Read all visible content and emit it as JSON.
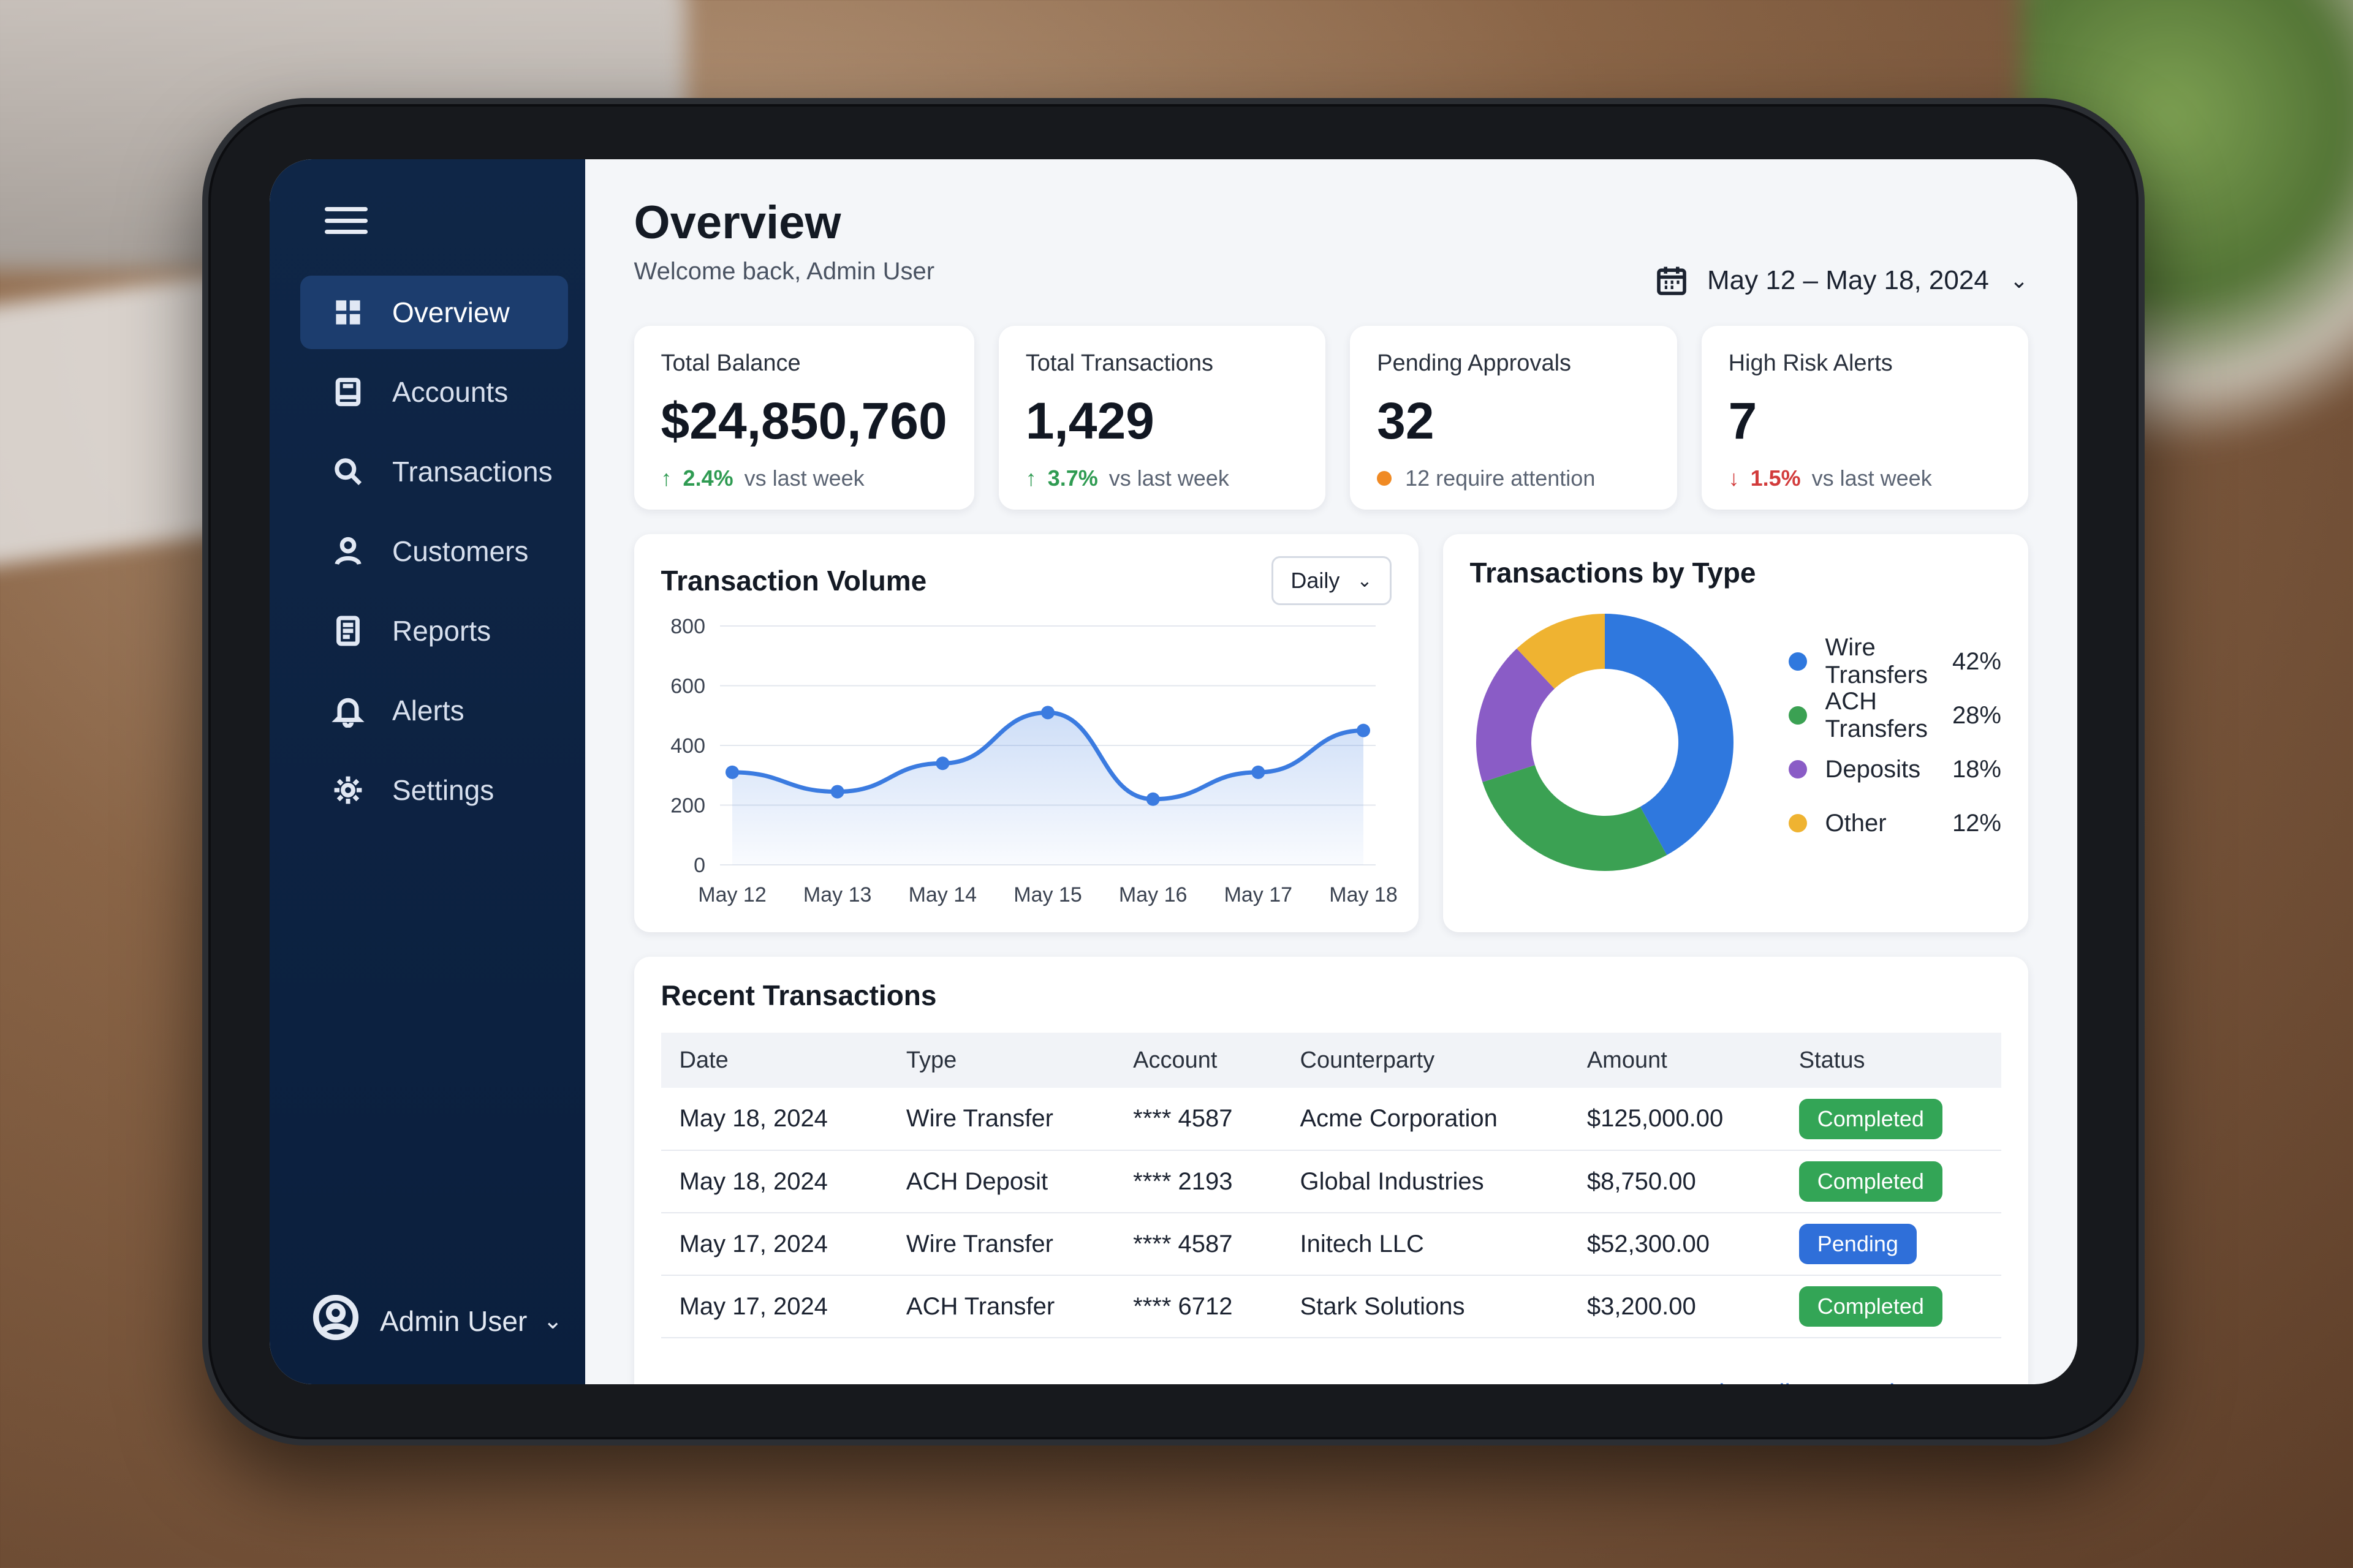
{
  "sidebar": {
    "items": [
      {
        "label": "Overview",
        "icon": "grid-icon",
        "active": true
      },
      {
        "label": "Accounts",
        "icon": "ledger-icon"
      },
      {
        "label": "Transactions",
        "icon": "search-icon"
      },
      {
        "label": "Customers",
        "icon": "user-icon"
      },
      {
        "label": "Reports",
        "icon": "document-icon"
      },
      {
        "label": "Alerts",
        "icon": "bell-icon"
      },
      {
        "label": "Settings",
        "icon": "gear-icon"
      }
    ],
    "user": "Admin User"
  },
  "header": {
    "title": "Overview",
    "subtitle": "Welcome back, Admin User",
    "date_range": "May 12 – May 18, 2024"
  },
  "kpis": [
    {
      "label": "Total Balance",
      "value": "$24,850,760",
      "delta": "2.4%",
      "delta_text": "vs last week",
      "direction": "up"
    },
    {
      "label": "Total Transactions",
      "value": "1,429",
      "delta": "3.7%",
      "delta_text": "vs last week",
      "direction": "up"
    },
    {
      "label": "Pending Approvals",
      "value": "32",
      "delta_text": "12 require attention",
      "direction": "attention"
    },
    {
      "label": "High Risk Alerts",
      "value": "7",
      "delta": "1.5%",
      "delta_text": "vs last week",
      "direction": "down"
    }
  ],
  "volume": {
    "title": "Transaction Volume",
    "period": "Daily"
  },
  "types": {
    "title": "Transactions by Type"
  },
  "chart_data": [
    {
      "type": "line",
      "title": "Transaction Volume",
      "categories": [
        "May 12",
        "May 13",
        "May 14",
        "May 15",
        "May 16",
        "May 17",
        "May 18"
      ],
      "values": [
        310,
        245,
        340,
        510,
        220,
        310,
        450
      ],
      "yticks": [
        0,
        200,
        400,
        600,
        800
      ],
      "ylim": [
        0,
        800
      ],
      "grid": true,
      "color": "#3b7be0"
    },
    {
      "type": "pie",
      "title": "Transactions by Type",
      "legend_position": "right",
      "slices": [
        {
          "name": "Wire Transfers",
          "value": 42,
          "label": "42%",
          "color": "#2f78de"
        },
        {
          "name": "ACH Transfers",
          "value": 28,
          "label": "28%",
          "color": "#3ba153"
        },
        {
          "name": "Deposits",
          "value": 18,
          "label": "18%",
          "color": "#8a5cc6"
        },
        {
          "name": "Other",
          "value": 12,
          "label": "12%",
          "color": "#efb331"
        }
      ]
    }
  ],
  "transactions": {
    "title": "Recent Transactions",
    "columns": [
      "Date",
      "Type",
      "Account",
      "Counterparty",
      "Amount",
      "Status"
    ],
    "rows": [
      {
        "date": "May 18, 2024",
        "type": "Wire Transfer",
        "account": "**** 4587",
        "counterparty": "Acme Corporation",
        "amount": "$125,000.00",
        "status": "Completed"
      },
      {
        "date": "May 18, 2024",
        "type": "ACH Deposit",
        "account": "**** 2193",
        "counterparty": "Global Industries",
        "amount": "$8,750.00",
        "status": "Completed"
      },
      {
        "date": "May 17, 2024",
        "type": "Wire Transfer",
        "account": "**** 4587",
        "counterparty": "Initech LLC",
        "amount": "$52,300.00",
        "status": "Pending"
      },
      {
        "date": "May 17, 2024",
        "type": "ACH Transfer",
        "account": "**** 6712",
        "counterparty": "Stark Solutions",
        "amount": "$3,200.00",
        "status": "Completed"
      }
    ],
    "view_all": "View all transactions"
  }
}
